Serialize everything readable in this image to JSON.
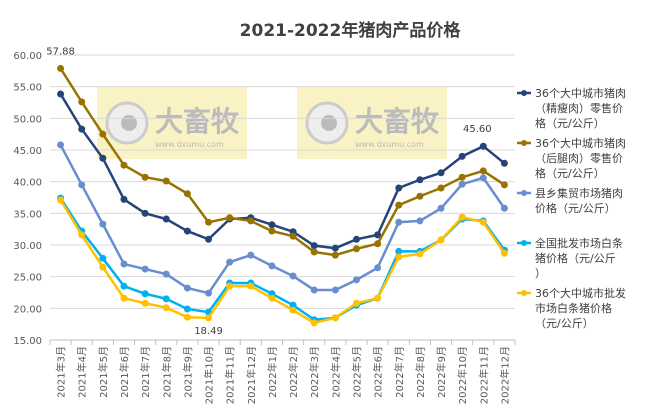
{
  "chart_data": {
    "type": "line",
    "title": "2021-2022年猪肉产品价格",
    "ylim": [
      15,
      60
    ],
    "yticks": [
      "15.00",
      "20.00",
      "25.00",
      "30.00",
      "35.00",
      "40.00",
      "45.00",
      "50.00",
      "55.00",
      "60.00"
    ],
    "grid": true,
    "legend_placement": "right",
    "categories": [
      "2021年3月",
      "2021年4月",
      "2021年5月",
      "2021年6月",
      "2021年7月",
      "2021年8月",
      "2021年9月",
      "2021年10月",
      "2021年11月",
      "2021年12月",
      "2022年1月",
      "2022年2月",
      "2022年3月",
      "2022年4月",
      "2022年5月",
      "2022年6月",
      "2022年7月",
      "2022年8月",
      "2022年9月",
      "2022年10月",
      "2022年11月",
      "2022年12月"
    ],
    "series": [
      {
        "name": "36个大中城市猪肉（精瘦肉）零售价格（元/公斤）",
        "color": "#264478",
        "values": [
          53.84,
          48.3,
          43.7,
          37.2,
          35.0,
          34.1,
          32.2,
          30.9,
          34.1,
          34.3,
          33.2,
          32.1,
          29.9,
          29.5,
          30.9,
          31.6,
          39.0,
          40.3,
          41.4,
          44.0,
          45.6,
          42.9
        ]
      },
      {
        "name": "36个大中城市猪肉（后腿肉）零售价格（元/公斤）",
        "color": "#997300",
        "values": [
          57.88,
          52.6,
          47.5,
          42.6,
          40.7,
          40.1,
          38.1,
          33.6,
          34.3,
          33.8,
          32.2,
          31.4,
          28.9,
          28.4,
          29.4,
          30.2,
          36.3,
          37.7,
          39.0,
          40.7,
          41.7,
          39.5
        ]
      },
      {
        "name": "县乡集贸市场猪肉价格（元/公斤）",
        "color": "#698ED0",
        "values": [
          45.8,
          39.5,
          33.3,
          27.0,
          26.2,
          25.4,
          23.2,
          22.4,
          27.3,
          28.4,
          26.7,
          25.1,
          22.9,
          22.9,
          24.5,
          26.4,
          33.6,
          33.8,
          35.8,
          39.6,
          40.6,
          35.8
        ]
      },
      {
        "name": "全国批发市场白条猪价格（元/公斤）",
        "color": "#00B0F0",
        "values": [
          37.4,
          32.2,
          27.9,
          23.5,
          22.3,
          21.5,
          19.9,
          19.4,
          24.0,
          24.0,
          22.3,
          20.5,
          18.2,
          18.5,
          20.5,
          21.6,
          29.0,
          29.0,
          30.8,
          34.1,
          33.8,
          29.2
        ]
      },
      {
        "name": "36个大中城市批发市场白条猪价格（元/公斤）",
        "color": "#FFC000",
        "values": [
          37.1,
          31.6,
          26.5,
          21.6,
          20.8,
          20.1,
          18.6,
          18.49,
          23.5,
          23.5,
          21.6,
          19.7,
          17.7,
          18.5,
          20.8,
          21.6,
          28.1,
          28.6,
          30.8,
          34.4,
          33.6,
          28.7
        ]
      }
    ],
    "legend_lines": [
      [
        "36个大中城市猪肉",
        "（精瘦肉）零售价",
        "格（元/公斤）"
      ],
      [
        "36个大中城市猪肉",
        "（后腿肉）零售价",
        "格（元/公斤）"
      ],
      [
        "县乡集贸市场猪肉",
        "价格（元/公斤）"
      ],
      [
        "全国批发市场白条",
        "猪价格（元/公斤",
        "）"
      ],
      [
        "36个大中城市批发",
        "市场白条猪价格",
        "（元/公斤）"
      ]
    ],
    "annotations": [
      {
        "series": 1,
        "index": 0,
        "text": "57.88"
      },
      {
        "series": 4,
        "index": 7,
        "text": "18.49"
      },
      {
        "series": 0,
        "index": 20,
        "text": "45.60"
      }
    ],
    "watermark": {
      "brand": "大畜牧",
      "url": "www.dxumu.com"
    }
  }
}
